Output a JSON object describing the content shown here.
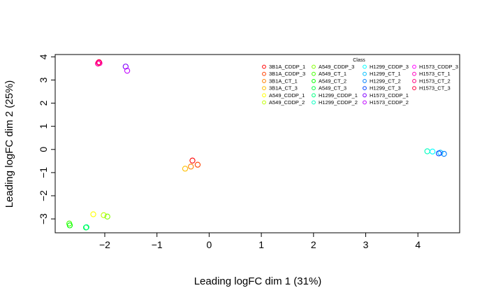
{
  "chart_data": {
    "type": "scatter",
    "xlabel": "Leading logFC dim 1 (31%)",
    "ylabel": "Leading logFC dim 2 (25%)",
    "xlim": [
      -2.95,
      4.8
    ],
    "ylim": [
      -3.6,
      4.1
    ],
    "x_ticks": [
      -2,
      -1,
      0,
      1,
      2,
      3,
      4
    ],
    "y_ticks": [
      -3,
      -2,
      -1,
      0,
      1,
      2,
      3,
      4
    ],
    "grid": false,
    "marker": "open-circle",
    "legend": {
      "title": "Class",
      "placement": "top-right",
      "columns": 4
    },
    "series": [
      {
        "name": "3B1A_CDDP_1",
        "color": "#ff0000",
        "points": [
          [
            -0.32,
            -0.48
          ]
        ]
      },
      {
        "name": "3B1A_CDDP_3",
        "color": "#ff4000",
        "points": [
          [
            -0.22,
            -0.66
          ]
        ]
      },
      {
        "name": "3B1A_CT_1",
        "color": "#ff8000",
        "points": [
          [
            -0.35,
            -0.74
          ]
        ]
      },
      {
        "name": "3B1A_CT_3",
        "color": "#ffbf00",
        "points": [
          [
            -0.46,
            -0.83
          ]
        ]
      },
      {
        "name": "A549_CDDP_1",
        "color": "#ffff00",
        "points": [
          [
            -2.22,
            -2.8
          ]
        ]
      },
      {
        "name": "A549_CDDP_2",
        "color": "#bfff00",
        "points": [
          [
            -2.02,
            -2.84
          ]
        ]
      },
      {
        "name": "A549_CDDP_3",
        "color": "#80ff00",
        "points": [
          [
            -1.95,
            -2.9
          ]
        ]
      },
      {
        "name": "A549_CT_1",
        "color": "#40ff00",
        "points": [
          [
            -2.68,
            -3.2
          ]
        ]
      },
      {
        "name": "A549_CT_2",
        "color": "#00ff00",
        "points": [
          [
            -2.67,
            -3.28
          ]
        ]
      },
      {
        "name": "A549_CT_3",
        "color": "#00ff40",
        "points": [
          [
            -2.36,
            -3.37
          ]
        ]
      },
      {
        "name": "H1299_CDDP_1",
        "color": "#00ff80",
        "points": [
          [
            -2.35,
            -3.36
          ]
        ]
      },
      {
        "name": "H1299_CDDP_2",
        "color": "#00ffbf",
        "points": [
          [
            4.18,
            -0.08
          ]
        ]
      },
      {
        "name": "H1299_CDDP_3",
        "color": "#00ffff",
        "points": [
          [
            4.28,
            -0.09
          ]
        ]
      },
      {
        "name": "H1299_CT_1",
        "color": "#00bfff",
        "points": [
          [
            4.43,
            -0.14
          ]
        ]
      },
      {
        "name": "H1299_CT_2",
        "color": "#0080ff",
        "points": [
          [
            4.5,
            -0.19
          ]
        ]
      },
      {
        "name": "H1299_CT_3",
        "color": "#0040ff",
        "points": [
          [
            4.4,
            -0.17
          ]
        ]
      },
      {
        "name": "H1573_CDDP_1",
        "color": "#8000ff",
        "points": [
          [
            -1.6,
            3.58
          ]
        ]
      },
      {
        "name": "H1573_CDDP_2",
        "color": "#bf00ff",
        "points": [
          [
            -1.57,
            3.4
          ]
        ]
      },
      {
        "name": "H1573_CDDP_3",
        "color": "#ff00ff",
        "points": [
          [
            -2.12,
            3.75
          ]
        ]
      },
      {
        "name": "H1573_CT_1",
        "color": "#ff00bf",
        "points": [
          [
            -2.1,
            3.73
          ]
        ]
      },
      {
        "name": "H1573_CT_2",
        "color": "#ff0080",
        "points": [
          [
            -2.13,
            3.71
          ]
        ]
      },
      {
        "name": "H1573_CT_3",
        "color": "#ff0040",
        "points": [
          [
            -2.11,
            3.77
          ]
        ]
      }
    ]
  }
}
